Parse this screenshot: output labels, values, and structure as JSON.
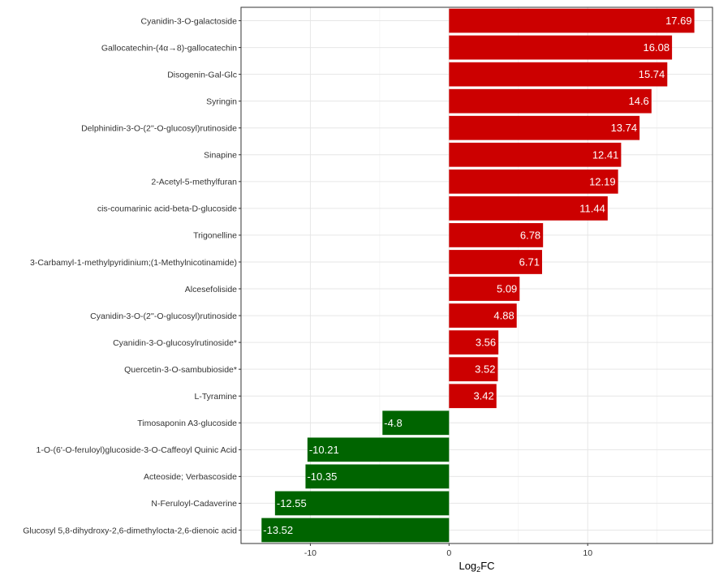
{
  "chart_data": {
    "type": "bar",
    "orientation": "horizontal",
    "categories": [
      "Cyanidin-3-O-galactoside",
      "Gallocatechin-(4α→8)-gallocatechin",
      "Disogenin-Gal-Glc",
      "Syringin",
      "Delphinidin-3-O-(2''-O-glucosyl)rutinoside",
      "Sinapine",
      "2-Acetyl-5-methylfuran",
      "cis-coumarinic acid-beta-D-glucoside",
      "Trigonelline",
      "3-Carbamyl-1-methylpyridinium;(1-Methylnicotinamide)",
      "Alcesefoliside",
      "Cyanidin-3-O-(2''-O-glucosyl)rutinoside",
      "Cyanidin-3-O-glucosylrutinoside*",
      "Quercetin-3-O-sambubioside*",
      "L-Tyramine",
      "Timosaponin A3-glucoside",
      "1-O-(6'-O-feruloyl)glucoside-3-O-Caffeoyl Quinic Acid",
      "Acteoside; Verbascoside",
      "N-Feruloyl-Cadaverine",
      "Glucosyl 5,8-dihydroxy-2,6-dimethylocta-2,6-dienoic acid"
    ],
    "values": [
      17.69,
      16.08,
      15.74,
      14.6,
      13.74,
      12.41,
      12.19,
      11.44,
      6.78,
      6.71,
      5.09,
      4.88,
      3.56,
      3.52,
      3.42,
      -4.8,
      -10.21,
      -10.35,
      -12.55,
      -13.52
    ],
    "data_labels": [
      "17.69",
      "16.08",
      "15.74",
      "14.6",
      "13.74",
      "12.41",
      "12.19",
      "11.44",
      "6.78",
      "6.71",
      "5.09",
      "4.88",
      "3.56",
      "3.52",
      "3.42",
      "-4.8",
      "-10.21",
      "-10.35",
      "-12.55",
      "-13.52"
    ],
    "xlabel_main": "Log",
    "xlabel_sub": "2",
    "xlabel_tail": "FC",
    "xlim": [
      -15,
      19
    ],
    "xticks": [
      -10,
      0,
      10
    ],
    "xtick_labels": [
      "-10",
      "0",
      "10"
    ],
    "grid": true,
    "colors": {
      "positive": "#CC0000",
      "negative": "#006400"
    }
  }
}
